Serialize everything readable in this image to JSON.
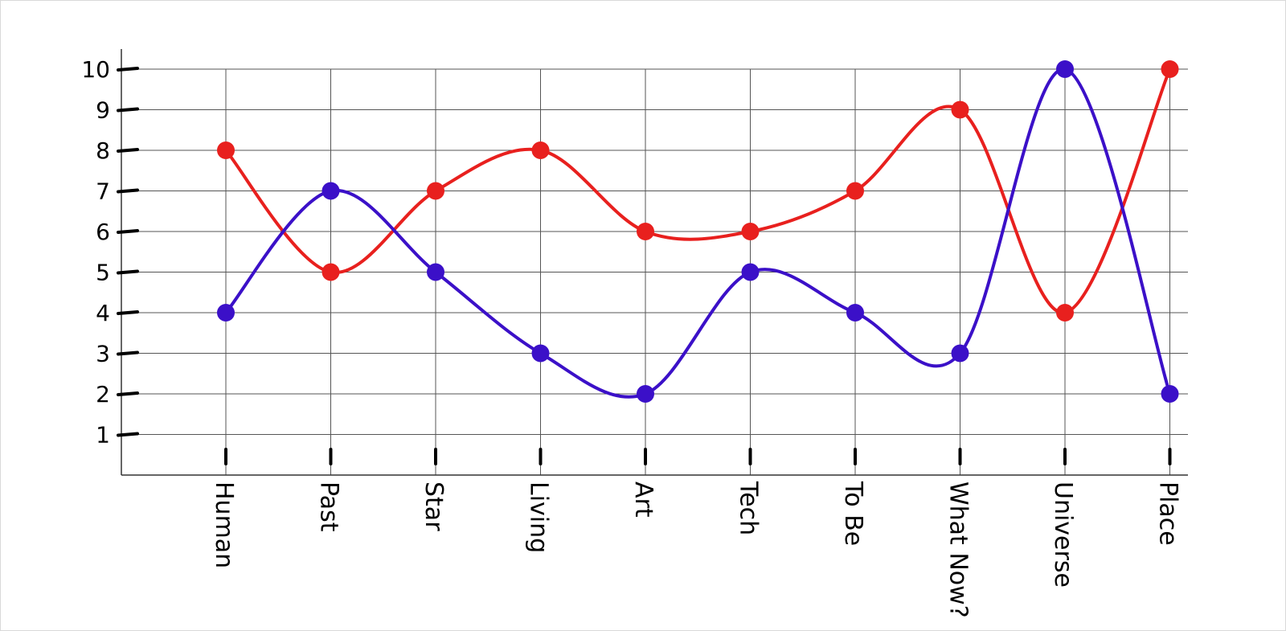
{
  "chart_data": {
    "type": "line",
    "title": "",
    "xlabel": "",
    "ylabel": "",
    "categories": [
      "Human",
      "Past",
      "Star",
      "Living",
      "Art",
      "Tech",
      "To Be",
      "What Now?",
      "Universe",
      "Place"
    ],
    "y_ticks": [
      "1",
      "2",
      "3",
      "4",
      "5",
      "6",
      "7",
      "8",
      "9",
      "10"
    ],
    "ylim": [
      0,
      10
    ],
    "grid": true,
    "legend": "none",
    "series": [
      {
        "color": "#e8201e",
        "values": [
          8,
          5,
          7,
          8,
          6,
          6,
          7,
          9,
          4,
          10
        ]
      },
      {
        "color": "#3b10c8",
        "values": [
          4,
          7,
          5,
          3,
          2,
          5,
          4,
          3,
          10,
          2
        ]
      }
    ]
  }
}
